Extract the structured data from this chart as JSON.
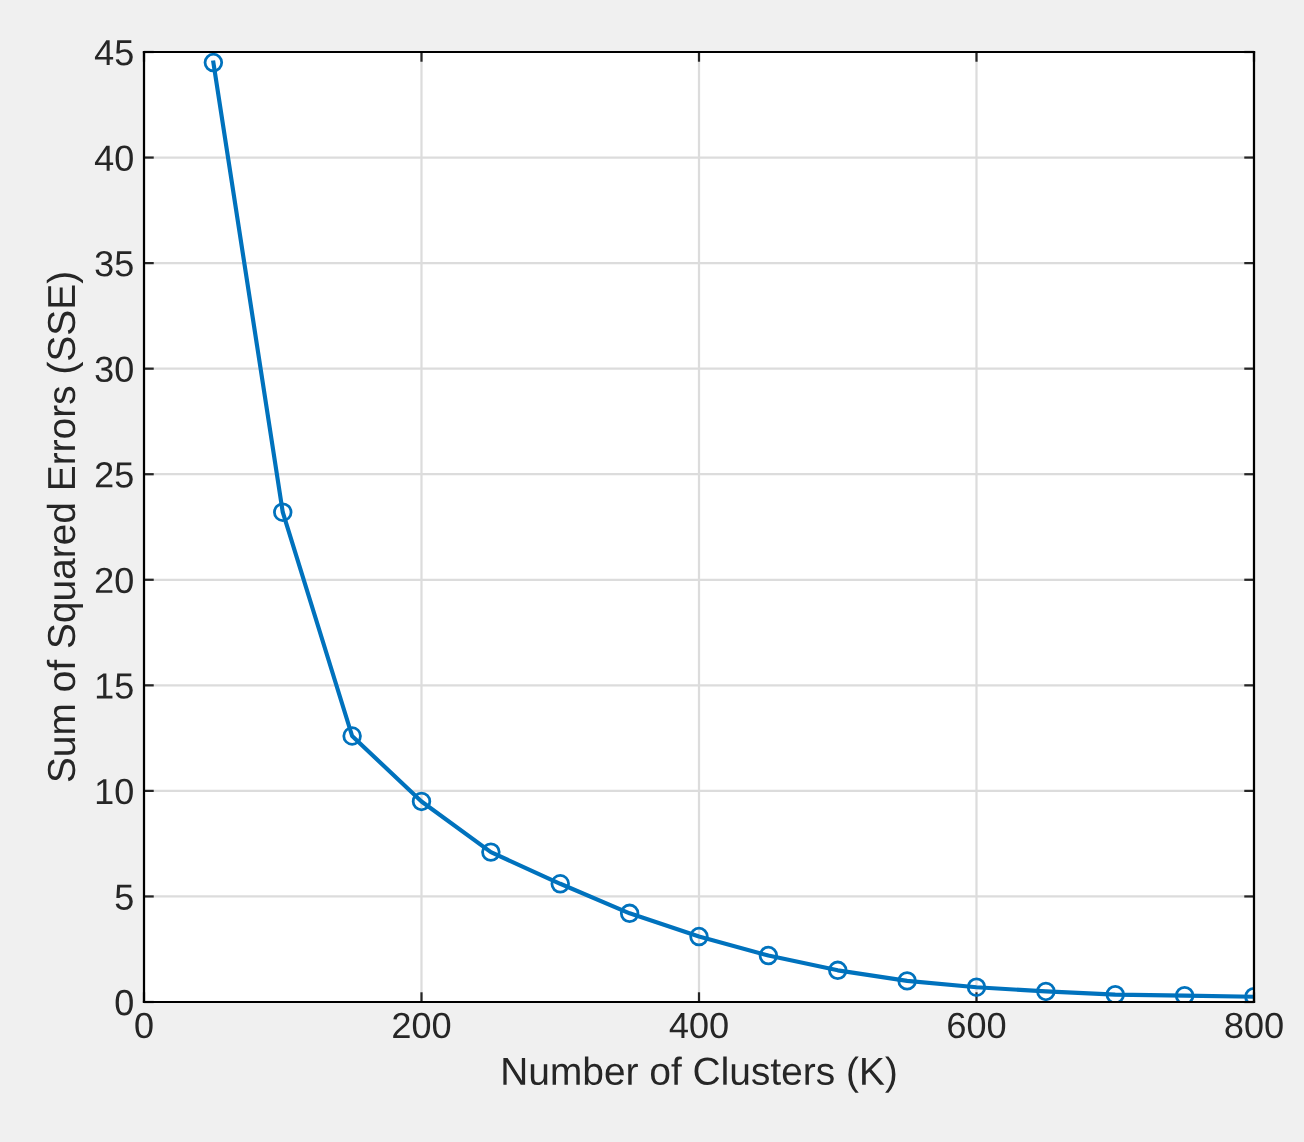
{
  "chart_data": {
    "type": "line",
    "xlabel": "Number of Clusters (K)",
    "ylabel": "Sum of Squared Errors (SSE)",
    "x": [
      50,
      100,
      150,
      200,
      250,
      300,
      350,
      400,
      450,
      500,
      550,
      600,
      650,
      700,
      750,
      800
    ],
    "series": [
      {
        "color": "#0072bd",
        "values": [
          44.5,
          23.2,
          12.6,
          9.5,
          7.1,
          5.6,
          4.2,
          3.1,
          2.2,
          1.5,
          1.0,
          0.7,
          0.5,
          0.35,
          0.3,
          0.25
        ]
      }
    ],
    "xlim": [
      0,
      800
    ],
    "xticks": [
      0,
      200,
      400,
      600,
      800
    ],
    "ylim": [
      0,
      45
    ],
    "yticks": [
      0,
      5,
      10,
      15,
      20,
      25,
      30,
      35,
      40,
      45
    ],
    "grid": true,
    "marker": "circle",
    "line_style": "solid"
  }
}
